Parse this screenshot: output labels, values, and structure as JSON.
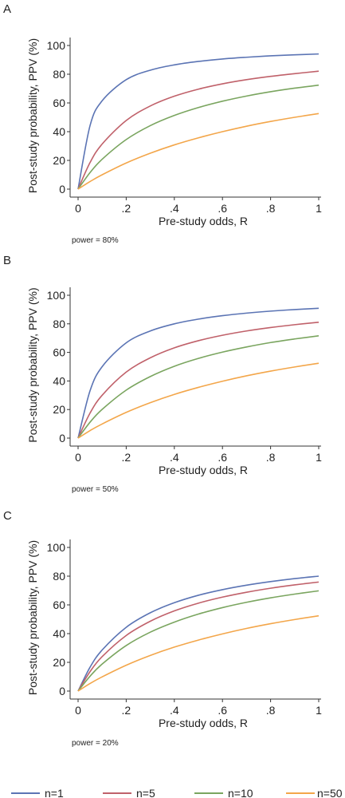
{
  "chart_data": [
    {
      "type": "line",
      "panel_label": "A",
      "note": "power = 80%",
      "xlabel": "Pre-study odds, R",
      "ylabel": "Post-study probability, PPV (%)",
      "xlim": [
        0,
        1
      ],
      "ylim": [
        0,
        100
      ],
      "xticks": [
        "0",
        ".2",
        ".4",
        ".6",
        ".8",
        "1"
      ],
      "yticks": [
        "0",
        "20",
        "40",
        "60",
        "80",
        "100"
      ],
      "grid": false,
      "x": [
        0,
        0.05,
        0.1,
        0.2,
        0.3,
        0.4,
        0.5,
        0.6,
        0.7,
        0.8,
        0.9,
        1.0
      ],
      "series": [
        {
          "name": "n=1",
          "color": "#5b74b4",
          "values": [
            0,
            44.4,
            61.5,
            76.2,
            82.8,
            86.5,
            88.9,
            90.6,
            91.8,
            92.8,
            93.5,
            94.1
          ]
        },
        {
          "name": "n=5",
          "color": "#c0616a",
          "values": [
            0,
            18.6,
            31.4,
            47.8,
            57.9,
            64.7,
            69.6,
            73.3,
            76.2,
            78.5,
            80.4,
            82.1
          ]
        },
        {
          "name": "n=10",
          "color": "#7aa55f",
          "values": [
            0,
            11.6,
            20.8,
            34.5,
            44.2,
            51.3,
            56.8,
            61.2,
            64.8,
            67.8,
            70.3,
            72.4
          ]
        },
        {
          "name": "n=50",
          "color": "#f3a64a",
          "values": [
            0,
            5.3,
            10.0,
            18.2,
            25.0,
            30.8,
            35.7,
            40.0,
            43.8,
            47.1,
            50.0,
            52.6
          ]
        }
      ]
    },
    {
      "type": "line",
      "panel_label": "B",
      "note": "power = 50%",
      "xlabel": "Pre-study odds, R",
      "ylabel": "Post-study probability, PPV (%)",
      "xlim": [
        0,
        1
      ],
      "ylim": [
        0,
        100
      ],
      "xticks": [
        "0",
        ".2",
        ".4",
        ".6",
        ".8",
        "1"
      ],
      "yticks": [
        "0",
        "20",
        "40",
        "60",
        "80",
        "100"
      ],
      "grid": false,
      "x": [
        0,
        0.05,
        0.1,
        0.2,
        0.3,
        0.4,
        0.5,
        0.6,
        0.7,
        0.8,
        0.9,
        1.0
      ],
      "series": [
        {
          "name": "n=1",
          "color": "#5b74b4",
          "values": [
            0,
            33.3,
            50.0,
            66.7,
            75.0,
            80.0,
            83.3,
            85.7,
            87.5,
            88.9,
            90.0,
            90.9
          ]
        },
        {
          "name": "n=5",
          "color": "#c0616a",
          "values": [
            0,
            17.6,
            30.0,
            46.2,
            56.2,
            63.2,
            68.2,
            72.0,
            75.0,
            77.4,
            79.4,
            81.1
          ]
        },
        {
          "name": "n=10",
          "color": "#7aa55f",
          "values": [
            0,
            11.2,
            20.1,
            33.6,
            43.1,
            50.3,
            55.8,
            60.2,
            63.8,
            66.9,
            69.4,
            71.6
          ]
        },
        {
          "name": "n=50",
          "color": "#f3a64a",
          "values": [
            0,
            5.3,
            9.9,
            18.0,
            24.8,
            30.6,
            35.5,
            39.8,
            43.6,
            46.9,
            49.8,
            52.4
          ]
        }
      ]
    },
    {
      "type": "line",
      "panel_label": "C",
      "note": "power = 20%",
      "xlabel": "Pre-study odds, R",
      "ylabel": "Post-study probability, PPV (%)",
      "xlim": [
        0,
        1
      ],
      "ylim": [
        0,
        100
      ],
      "xticks": [
        "0",
        ".2",
        ".4",
        ".6",
        ".8",
        "1"
      ],
      "yticks": [
        "0",
        "20",
        "40",
        "60",
        "80",
        "100"
      ],
      "grid": false,
      "x": [
        0,
        0.05,
        0.1,
        0.2,
        0.3,
        0.4,
        0.5,
        0.6,
        0.7,
        0.8,
        0.9,
        1.0
      ],
      "series": [
        {
          "name": "n=1",
          "color": "#5b74b4",
          "values": [
            0,
            16.7,
            28.6,
            44.4,
            54.5,
            61.5,
            66.7,
            70.6,
            73.7,
            76.2,
            78.3,
            80.0
          ]
        },
        {
          "name": "n=5",
          "color": "#c0616a",
          "values": [
            0,
            13.6,
            24.0,
            38.7,
            48.6,
            55.8,
            61.2,
            65.4,
            68.8,
            71.6,
            73.9,
            75.9
          ]
        },
        {
          "name": "n=10",
          "color": "#7aa55f",
          "values": [
            0,
            10.4,
            18.8,
            31.7,
            41.0,
            48.0,
            53.6,
            58.1,
            61.8,
            64.9,
            67.5,
            69.8
          ]
        },
        {
          "name": "n=50",
          "color": "#f3a64a",
          "values": [
            0,
            5.3,
            9.9,
            18.0,
            24.8,
            30.6,
            35.5,
            39.8,
            43.6,
            46.9,
            49.8,
            52.4
          ]
        }
      ]
    }
  ],
  "legend": [
    {
      "label": "n=1",
      "color": "#5b74b4"
    },
    {
      "label": "n=5",
      "color": "#c0616a"
    },
    {
      "label": "n=10",
      "color": "#7aa55f"
    },
    {
      "label": "n=50",
      "color": "#f3a64a"
    }
  ]
}
